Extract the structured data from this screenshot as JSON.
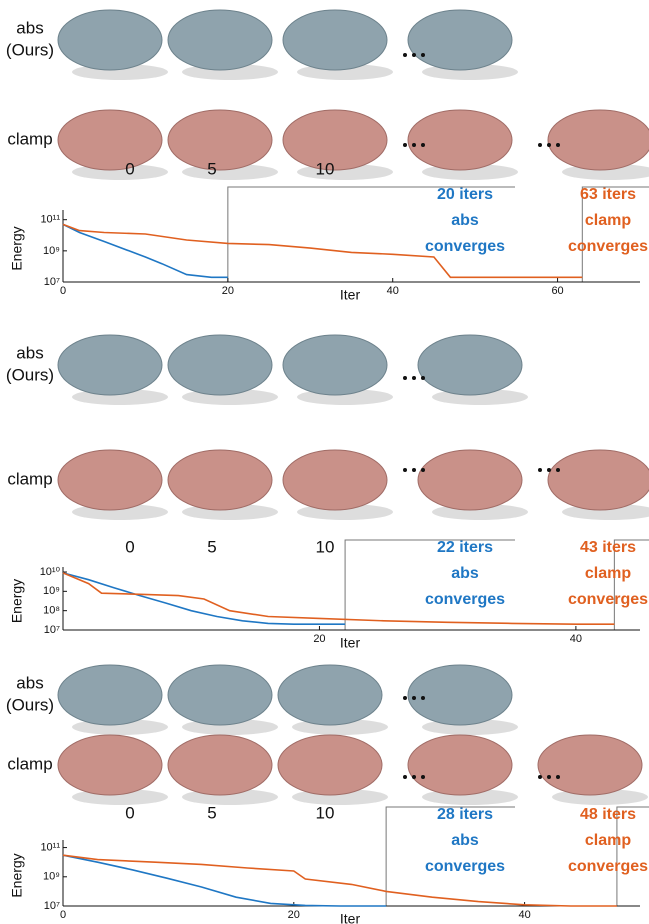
{
  "panels": [
    {
      "row_labels": [
        [
          "abs",
          "(Ours)"
        ],
        [
          "clamp"
        ]
      ],
      "iterations": [
        "0",
        "5",
        "10"
      ],
      "abs_note": [
        "20 iters",
        "abs",
        "converges"
      ],
      "clamp_note": [
        "63 iters",
        "clamp",
        "converges"
      ]
    },
    {
      "row_labels": [
        [
          "abs",
          "(Ours)"
        ],
        [
          "clamp"
        ]
      ],
      "iterations": [
        "0",
        "5",
        "10"
      ],
      "abs_note": [
        "22 iters",
        "abs",
        "converges"
      ],
      "clamp_note": [
        "43 iters",
        "clamp",
        "converges"
      ]
    },
    {
      "row_labels": [
        [
          "abs",
          "(Ours)"
        ],
        [
          "clamp"
        ]
      ],
      "iterations": [
        "0",
        "5",
        "10"
      ],
      "abs_note": [
        "28 iters",
        "abs",
        "converges"
      ],
      "clamp_note": [
        "48 iters",
        "clamp",
        "converges"
      ]
    }
  ],
  "chart_data": [
    {
      "type": "line",
      "y_label": "Energy",
      "x_label": "Iter",
      "log_y": true,
      "xlim": [
        0,
        70
      ],
      "xticks": [
        0,
        20,
        40,
        60
      ],
      "ylim": [
        10000000,
        200000000000
      ],
      "yticks": [
        {
          "value": 10000000,
          "label": "10⁷"
        },
        {
          "value": 1000000000,
          "label": "10⁹"
        },
        {
          "value": 100000000000,
          "label": "10¹¹"
        }
      ],
      "series": [
        {
          "name": "abs",
          "color": "#1f77c4",
          "x": [
            0,
            2,
            5,
            8,
            10,
            12,
            15,
            18,
            20
          ],
          "values": [
            50000000000,
            15000000000,
            4000000000,
            1000000000,
            400000000,
            150000000,
            30000000,
            20000000,
            20000000
          ]
        },
        {
          "name": "clamp",
          "color": "#e06020",
          "x": [
            0,
            2,
            5,
            10,
            15,
            20,
            25,
            30,
            35,
            40,
            45,
            47,
            55,
            63
          ],
          "values": [
            50000000000,
            20000000000,
            15000000000,
            12000000000,
            5000000000,
            3000000000,
            2500000000,
            1500000000,
            800000000,
            600000000,
            400000000,
            20000000,
            20000000,
            20000000
          ]
        }
      ]
    },
    {
      "type": "line",
      "y_label": "Energy",
      "x_label": "Iter",
      "log_y": true,
      "xlim": [
        0,
        45
      ],
      "xticks": [
        20,
        40
      ],
      "ylim": [
        10000000,
        10000000000
      ],
      "yticks": [
        {
          "value": 10000000,
          "label": "10⁷"
        },
        {
          "value": 100000000,
          "label": "10⁸"
        },
        {
          "value": 1000000000,
          "label": "10⁹"
        },
        {
          "value": 10000000000,
          "label": "10¹⁰"
        }
      ],
      "series": [
        {
          "name": "abs",
          "color": "#1f77c4",
          "x": [
            0,
            2,
            4,
            6,
            8,
            10,
            12,
            14,
            16,
            18,
            20,
            22
          ],
          "values": [
            9000000000,
            4000000000,
            1500000000,
            600000000,
            250000000,
            100000000,
            50000000,
            30000000,
            22000000,
            20000000,
            20000000,
            20000000
          ]
        },
        {
          "name": "clamp",
          "color": "#e06020",
          "x": [
            0,
            2,
            3,
            6,
            9,
            11,
            13,
            16,
            20,
            25,
            30,
            35,
            40,
            43
          ],
          "values": [
            9000000000,
            2500000000,
            800000000,
            700000000,
            600000000,
            400000000,
            100000000,
            50000000,
            40000000,
            30000000,
            25000000,
            22000000,
            20000000,
            20000000
          ]
        }
      ]
    },
    {
      "type": "line",
      "y_label": "Energy",
      "x_label": "Iter",
      "log_y": true,
      "xlim": [
        0,
        50
      ],
      "xticks": [
        0,
        20,
        40
      ],
      "ylim": [
        10000000,
        150000000000
      ],
      "yticks": [
        {
          "value": 10000000,
          "label": "10⁷"
        },
        {
          "value": 1000000000,
          "label": "10⁹"
        },
        {
          "value": 100000000000,
          "label": "10¹¹"
        }
      ],
      "series": [
        {
          "name": "abs",
          "color": "#1f77c4",
          "x": [
            0,
            3,
            6,
            9,
            12,
            15,
            18,
            21,
            24,
            28
          ],
          "values": [
            30000000000,
            10000000000,
            3000000000,
            800000000,
            200000000,
            40000000,
            15000000,
            11000000,
            10000000,
            10000000
          ]
        },
        {
          "name": "clamp",
          "color": "#e06020",
          "x": [
            0,
            3,
            8,
            12,
            16,
            20,
            21,
            25,
            28,
            32,
            36,
            40,
            44,
            48
          ],
          "values": [
            30000000000,
            15000000000,
            10000000000,
            7000000000,
            4000000000,
            2500000000,
            700000000,
            300000000,
            100000000,
            40000000,
            20000000,
            12000000,
            10000000,
            10000000
          ]
        }
      ]
    }
  ]
}
